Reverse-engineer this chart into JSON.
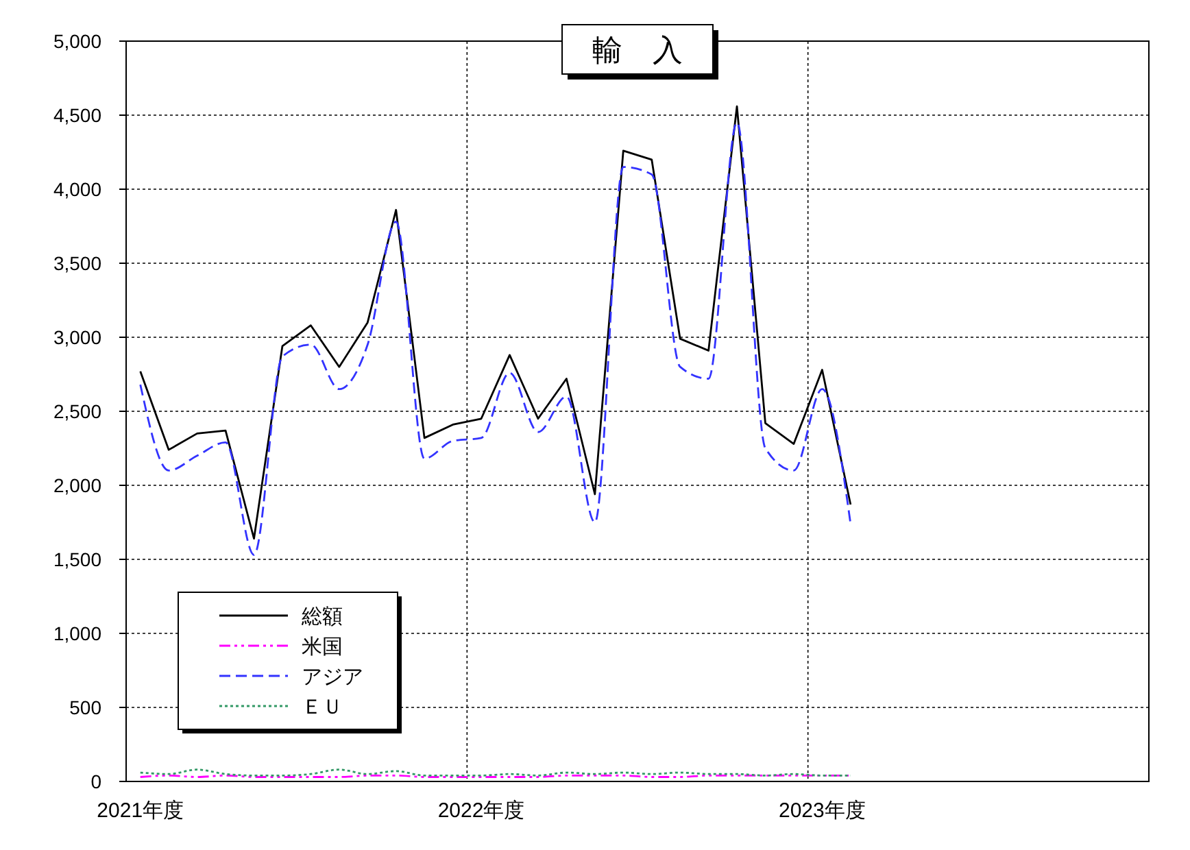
{
  "chart_data": {
    "type": "line",
    "title": "輸　入",
    "categories": [
      "2021年度",
      null,
      null,
      null,
      null,
      null,
      null,
      null,
      null,
      null,
      null,
      null,
      "2022年度",
      null,
      null,
      null,
      null,
      null,
      null,
      null,
      null,
      null,
      null,
      null,
      "2023年度",
      null,
      null,
      null,
      null,
      null,
      null,
      null,
      null,
      null,
      null,
      null
    ],
    "ylim": [
      0,
      5000
    ],
    "yticks": [
      {
        "value": 0,
        "label": "0"
      },
      {
        "value": 500,
        "label": "500"
      },
      {
        "value": 1000,
        "label": "1,000"
      },
      {
        "value": 1500,
        "label": "1,500"
      },
      {
        "value": 2000,
        "label": "2,000"
      },
      {
        "value": 2500,
        "label": "2,500"
      },
      {
        "value": 3000,
        "label": "3,000"
      },
      {
        "value": 3500,
        "label": "3,500"
      },
      {
        "value": 4000,
        "label": "4,000"
      },
      {
        "value": 4500,
        "label": "4,500"
      },
      {
        "value": 5000,
        "label": "5,000"
      }
    ],
    "grid": true,
    "legend": "bottom left",
    "marker": "none",
    "series": [
      {
        "name": "総額",
        "color": "#000000",
        "line_style": "solid",
        "values": [
          2770,
          2240,
          2350,
          2370,
          1640,
          2940,
          3080,
          2800,
          3100,
          3860,
          2320,
          2410,
          2450,
          2880,
          2450,
          2720,
          1940,
          4260,
          4200,
          2990,
          2910,
          4560,
          2420,
          2280,
          2780,
          1870,
          null,
          null,
          null,
          null,
          null,
          null,
          null,
          null,
          null,
          null
        ]
      },
      {
        "name": "米国",
        "color": "#ff00ff",
        "line_style": "dashdot",
        "values": [
          30,
          40,
          30,
          40,
          30,
          30,
          30,
          30,
          40,
          40,
          30,
          30,
          30,
          30,
          30,
          40,
          40,
          40,
          30,
          30,
          40,
          40,
          40,
          40,
          40,
          40,
          null,
          null,
          null,
          null,
          null,
          null,
          null,
          null,
          null,
          null
        ]
      },
      {
        "name": "アジア",
        "color": "#3333ff",
        "line_style": "dashed",
        "values": [
          2680,
          2100,
          2200,
          2290,
          1530,
          2870,
          2950,
          2650,
          2950,
          3780,
          2180,
          2300,
          2320,
          2760,
          2360,
          2600,
          1750,
          4150,
          4100,
          2800,
          2720,
          4450,
          2250,
          2100,
          2650,
          1740,
          null,
          null,
          null,
          null,
          null,
          null,
          null,
          null,
          null,
          null
        ]
      },
      {
        "name": "ＥＵ",
        "color": "#339966",
        "line_style": "dotted",
        "values": [
          60,
          50,
          80,
          50,
          40,
          40,
          50,
          80,
          50,
          70,
          40,
          40,
          40,
          50,
          40,
          60,
          50,
          60,
          50,
          60,
          50,
          50,
          40,
          50,
          40,
          40,
          null,
          null,
          null,
          null,
          null,
          null,
          null,
          null,
          null,
          null
        ]
      }
    ]
  }
}
